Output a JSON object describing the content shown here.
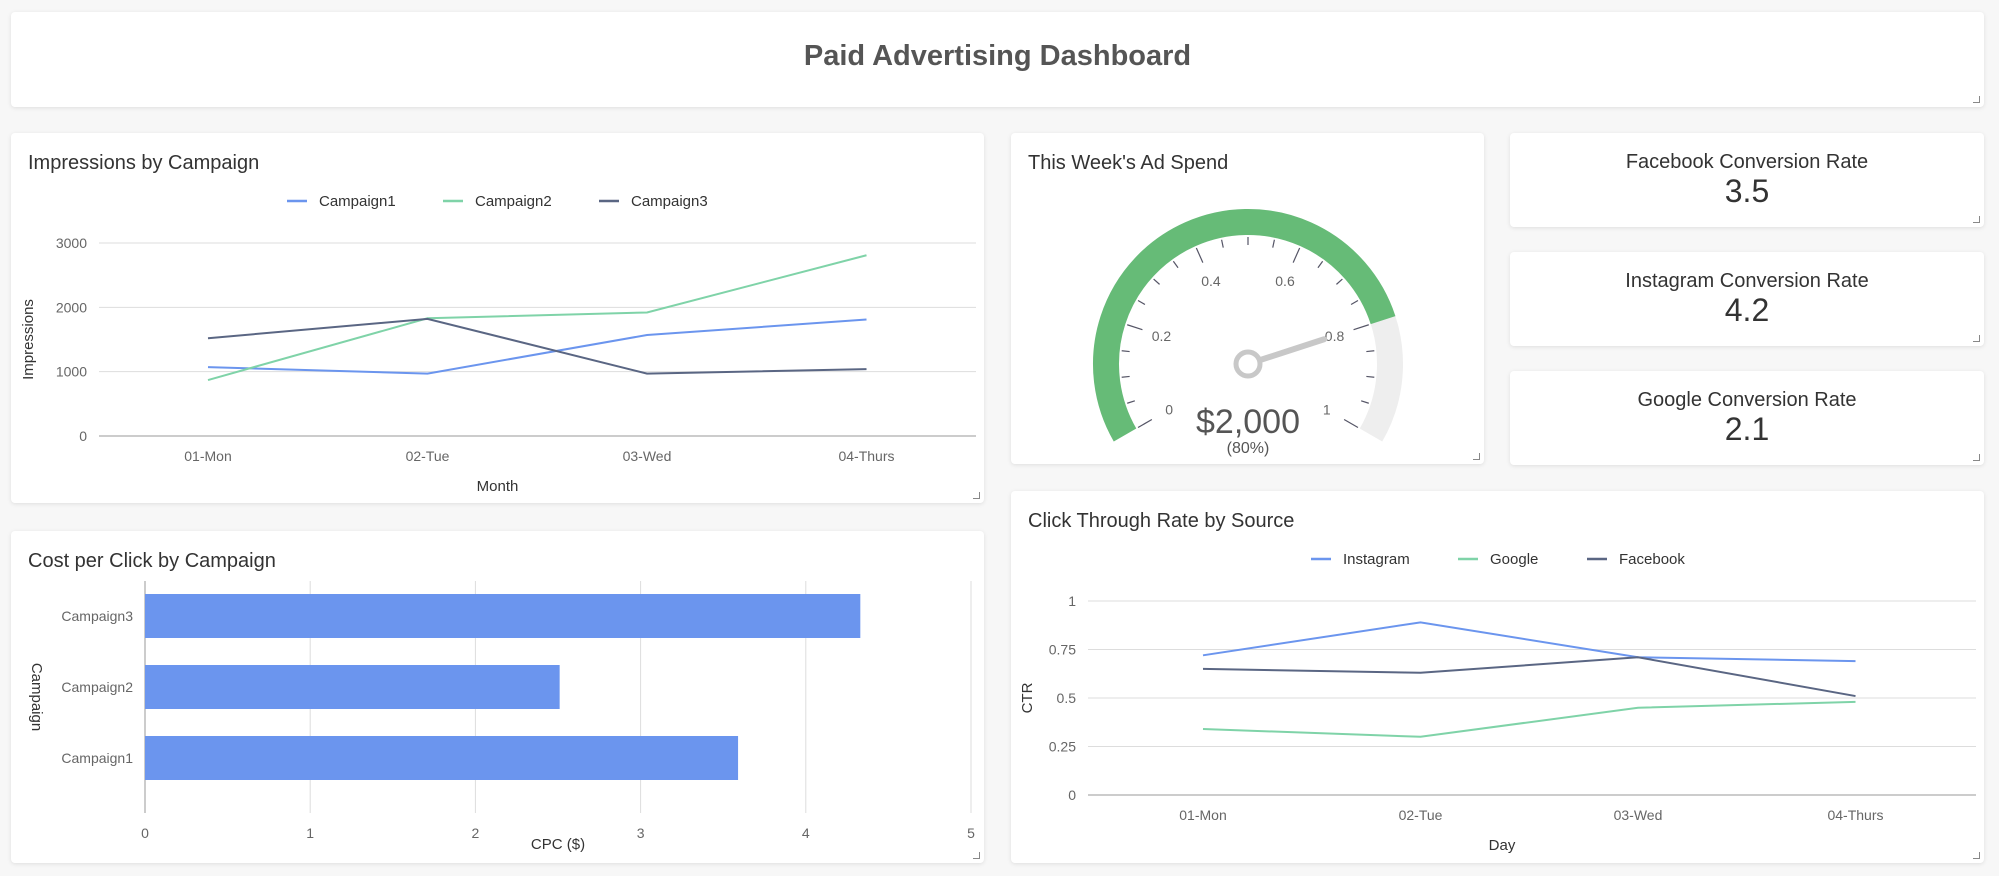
{
  "dashboard": {
    "title": "Paid Advertising Dashboard"
  },
  "colors": {
    "campaign1": "#6b95ee",
    "campaign2": "#7fd3a8",
    "campaign3": "#5a6683",
    "gauge_fill": "#66bb77",
    "gauge_rest": "#eeeeee",
    "bar": "#6b95ee"
  },
  "impressions": {
    "title": "Impressions by Campaign",
    "chart_data": {
      "type": "line",
      "categories": [
        "01-Mon",
        "02-Tue",
        "03-Wed",
        "04-Thurs"
      ],
      "series": [
        {
          "name": "Campaign1",
          "values": [
            1070,
            970,
            1570,
            1810
          ]
        },
        {
          "name": "Campaign2",
          "values": [
            870,
            1830,
            1920,
            2810
          ]
        },
        {
          "name": "Campaign3",
          "values": [
            1520,
            1820,
            970,
            1040
          ]
        }
      ],
      "xlabel": "Month",
      "ylabel": "Impressions",
      "ylim": [
        0,
        3000
      ],
      "yticks": [
        0,
        1000,
        2000,
        3000
      ],
      "grid": true,
      "legend": "top"
    }
  },
  "ad_spend": {
    "title": "This Week's Ad Spend",
    "value_text": "$2,000",
    "percent_text": "(80%)",
    "value_fraction": 0.8,
    "ticks": [
      "0",
      "0.2",
      "0.4",
      "0.6",
      "0.8",
      "1"
    ]
  },
  "kpis": [
    {
      "label": "Facebook Conversion Rate",
      "value": "3.5"
    },
    {
      "label": "Instagram Conversion Rate",
      "value": "4.2"
    },
    {
      "label": "Google Conversion Rate",
      "value": "2.1"
    }
  ],
  "cpc": {
    "title": "Cost per Click by Campaign",
    "chart_data": {
      "type": "bar",
      "orientation": "horizontal",
      "categories": [
        "Campaign3",
        "Campaign2",
        "Campaign1"
      ],
      "values": [
        4.33,
        2.51,
        3.59
      ],
      "xlabel": "CPC ($)",
      "ylabel": "Campaign",
      "xlim": [
        0,
        5
      ],
      "xticks": [
        0,
        1,
        2,
        3,
        4,
        5
      ],
      "grid": true
    }
  },
  "ctr": {
    "title": "Click Through Rate by Source",
    "chart_data": {
      "type": "line",
      "categories": [
        "01-Mon",
        "02-Tue",
        "03-Wed",
        "04-Thurs"
      ],
      "series": [
        {
          "name": "Instagram",
          "values": [
            0.72,
            0.89,
            0.71,
            0.69
          ]
        },
        {
          "name": "Google",
          "values": [
            0.34,
            0.3,
            0.45,
            0.48
          ]
        },
        {
          "name": "Facebook",
          "values": [
            0.65,
            0.63,
            0.71,
            0.51
          ]
        }
      ],
      "xlabel": "Day",
      "ylabel": "CTR",
      "ylim": [
        0,
        1
      ],
      "yticks": [
        "0",
        "0.25",
        "0.5",
        "0.75",
        "1"
      ],
      "grid": true,
      "legend": "top"
    }
  }
}
